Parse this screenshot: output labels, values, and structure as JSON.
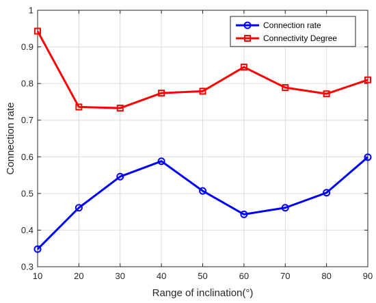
{
  "chart_data": {
    "type": "line",
    "title": "",
    "xlabel": "Range of inclination(°)",
    "ylabel": "Connection rate",
    "x": [
      10,
      20,
      30,
      40,
      50,
      60,
      70,
      80,
      90
    ],
    "xlim": [
      10,
      90
    ],
    "ylim": [
      0.3,
      1.0
    ],
    "xticks": [
      "10",
      "20",
      "30",
      "40",
      "50",
      "60",
      "70",
      "80",
      "90"
    ],
    "yticks": [
      "0.3",
      "0.4",
      "0.5",
      "0.6",
      "0.7",
      "0.8",
      "0.9",
      "1"
    ],
    "grid": true,
    "legend_position": "top-right",
    "series": [
      {
        "name": "Connection rate",
        "color": "#0000ff",
        "marker": "circle",
        "values": [
          0.348,
          0.461,
          0.546,
          0.588,
          0.507,
          0.443,
          0.461,
          0.502,
          0.599
        ]
      },
      {
        "name": "Connectivity Degree",
        "color": "#ff0000",
        "marker": "square",
        "values": [
          0.943,
          0.736,
          0.733,
          0.774,
          0.779,
          0.845,
          0.789,
          0.772,
          0.81
        ]
      }
    ]
  }
}
